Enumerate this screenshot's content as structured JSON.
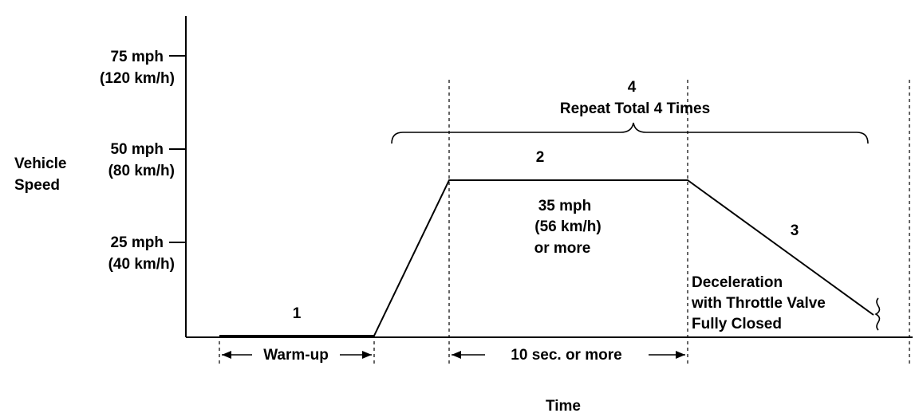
{
  "y_axis": {
    "title_line1": "Vehicle",
    "title_line2": "Speed",
    "ticks": [
      {
        "mph": "75 mph",
        "kmh": "(120 km/h)"
      },
      {
        "mph": "50 mph",
        "kmh": "(80 km/h)"
      },
      {
        "mph": "25 mph",
        "kmh": "(40 km/h)"
      }
    ]
  },
  "x_axis": {
    "title": "Time"
  },
  "phases": {
    "phase1": {
      "number": "1",
      "span_label": "Warm-up"
    },
    "phase2": {
      "number": "2",
      "speed_line1": "35 mph",
      "speed_line2": "(56 km/h)",
      "speed_line3": "or more",
      "span_label": "10 sec. or more"
    },
    "phase3": {
      "number": "3",
      "desc_line1": "Deceleration",
      "desc_line2": "with Throttle Valve",
      "desc_line3": "Fully Closed"
    },
    "phase4": {
      "number": "4",
      "repeat_label": "Repeat Total 4 Times"
    }
  }
}
